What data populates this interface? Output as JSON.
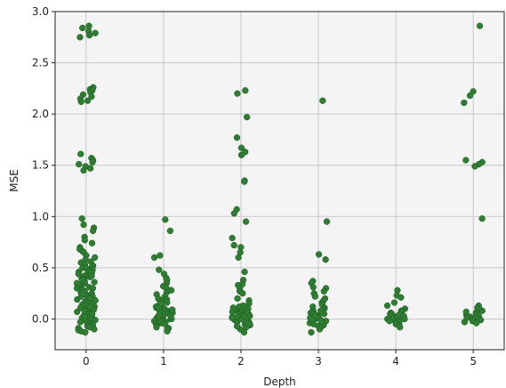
{
  "chart_data": {
    "type": "scatter",
    "title": "",
    "xlabel": "Depth",
    "ylabel": "MSE",
    "xlim": [
      -0.4,
      5.4
    ],
    "ylim": [
      -0.3,
      3.0
    ],
    "grid": true,
    "x_ticks": [
      0,
      1,
      2,
      3,
      4,
      5
    ],
    "x_tick_labels": [
      "0",
      "1",
      "2",
      "3",
      "4",
      "5"
    ],
    "y_ticks": [
      0.0,
      0.5,
      1.0,
      1.5,
      2.0,
      2.5,
      3.0
    ],
    "y_tick_labels": [
      "0.0",
      "0.5",
      "1.0",
      "1.5",
      "2.0",
      "2.5",
      "3.0"
    ],
    "colors": {
      "point": "#2e7d32",
      "point_edge": "#1f5a22",
      "plot_bg": "#f4f4f4",
      "grid": "#c8c8c8",
      "axis": "#222222"
    },
    "strip_jitter": 0.12,
    "series": [
      {
        "x": 0,
        "values": [
          2.86,
          2.84,
          2.81,
          2.79,
          2.77,
          2.77,
          2.75,
          2.26,
          2.24,
          2.23,
          2.21,
          2.19,
          2.17,
          2.15,
          2.13,
          2.12,
          1.61,
          1.57,
          1.55,
          1.53,
          1.51,
          1.49,
          1.47,
          1.45,
          0.98,
          0.92,
          0.89,
          0.86,
          0.8,
          0.77,
          0.74,
          0.7,
          0.68,
          0.66,
          0.65,
          0.62,
          0.6,
          0.58,
          0.56,
          0.55,
          0.53,
          0.52,
          0.51,
          0.5,
          0.49,
          0.48,
          0.47,
          0.46,
          0.45,
          0.44,
          0.43,
          0.42,
          0.41,
          0.4,
          0.39,
          0.38,
          0.37,
          0.36,
          0.35,
          0.34,
          0.33,
          0.32,
          0.31,
          0.3,
          0.29,
          0.28,
          0.27,
          0.26,
          0.25,
          0.24,
          0.23,
          0.22,
          0.21,
          0.2,
          0.19,
          0.18,
          0.17,
          0.16,
          0.15,
          0.14,
          0.13,
          0.12,
          0.11,
          0.1,
          0.09,
          0.08,
          0.07,
          0.06,
          0.05,
          0.04,
          0.03,
          0.02,
          0.01,
          0.0,
          -0.01,
          -0.02,
          -0.03,
          -0.04,
          -0.05,
          -0.06,
          -0.07,
          -0.08,
          -0.09,
          -0.1,
          -0.11,
          -0.12,
          -0.13,
          0.45,
          0.38,
          0.3,
          0.22,
          0.15,
          0.08,
          0.02,
          0.35,
          0.25,
          0.12,
          0.05,
          0.42,
          0.18
        ]
      },
      {
        "x": 1,
        "values": [
          0.97,
          0.86,
          0.62,
          0.6,
          0.48,
          0.44,
          0.4,
          0.38,
          0.35,
          0.32,
          0.3,
          0.28,
          0.26,
          0.24,
          0.22,
          0.2,
          0.19,
          0.18,
          0.17,
          0.16,
          0.15,
          0.14,
          0.13,
          0.12,
          0.11,
          0.1,
          0.09,
          0.08,
          0.07,
          0.06,
          0.05,
          0.04,
          0.03,
          0.02,
          0.01,
          0.0,
          -0.01,
          -0.02,
          -0.03,
          -0.04,
          -0.05,
          -0.06,
          -0.07,
          -0.08,
          -0.09,
          -0.1,
          -0.12,
          0.15,
          0.1,
          0.05,
          0.0,
          0.08,
          0.12,
          0.03,
          -0.02,
          0.06,
          0.11,
          0.02,
          -0.05,
          0.09,
          0.04
        ]
      },
      {
        "x": 2,
        "values": [
          2.23,
          2.2,
          1.97,
          1.77,
          1.67,
          1.63,
          1.6,
          1.35,
          1.34,
          1.07,
          1.03,
          0.95,
          0.79,
          0.72,
          0.7,
          0.65,
          0.6,
          0.46,
          0.38,
          0.34,
          0.33,
          0.3,
          0.27,
          0.25,
          0.2,
          0.18,
          0.15,
          0.13,
          0.12,
          0.1,
          0.08,
          0.07,
          0.06,
          0.05,
          0.04,
          0.03,
          0.02,
          0.01,
          0.0,
          -0.01,
          -0.02,
          -0.03,
          -0.04,
          -0.05,
          -0.06,
          -0.08,
          -0.1,
          -0.13,
          0.05,
          0.02,
          -0.02,
          0.09,
          0.04,
          0.0,
          0.11,
          -0.04,
          0.06,
          0.01,
          0.03,
          -0.07,
          0.07
        ]
      },
      {
        "x": 3,
        "values": [
          2.13,
          0.95,
          0.63,
          0.58,
          0.37,
          0.35,
          0.31,
          0.3,
          0.27,
          0.25,
          0.22,
          0.2,
          0.18,
          0.16,
          0.14,
          0.12,
          0.11,
          0.1,
          0.09,
          0.08,
          0.07,
          0.06,
          0.05,
          0.04,
          0.03,
          0.02,
          0.01,
          0.0,
          -0.01,
          -0.02,
          -0.03,
          -0.04,
          -0.05,
          -0.06,
          -0.07,
          -0.08,
          -0.1,
          -0.13,
          0.05,
          0.02,
          -0.02,
          0.08,
          0.03,
          0.0
        ]
      },
      {
        "x": 4,
        "values": [
          0.28,
          0.23,
          0.21,
          0.16,
          0.13,
          0.1,
          0.08,
          0.07,
          0.06,
          0.05,
          0.04,
          0.03,
          0.02,
          0.01,
          0.0,
          -0.01,
          -0.02,
          -0.03,
          -0.04,
          -0.05,
          -0.07,
          -0.08,
          0.05,
          0.02,
          0.0,
          -0.02
        ]
      },
      {
        "x": 5,
        "values": [
          2.86,
          2.22,
          2.18,
          2.11,
          1.55,
          1.53,
          1.51,
          1.49,
          0.98,
          0.13,
          0.11,
          0.1,
          0.08,
          0.06,
          0.05,
          0.04,
          0.03,
          0.02,
          0.01,
          0.0,
          -0.01,
          -0.02,
          -0.03,
          -0.04,
          0.07,
          0.01
        ]
      }
    ]
  }
}
